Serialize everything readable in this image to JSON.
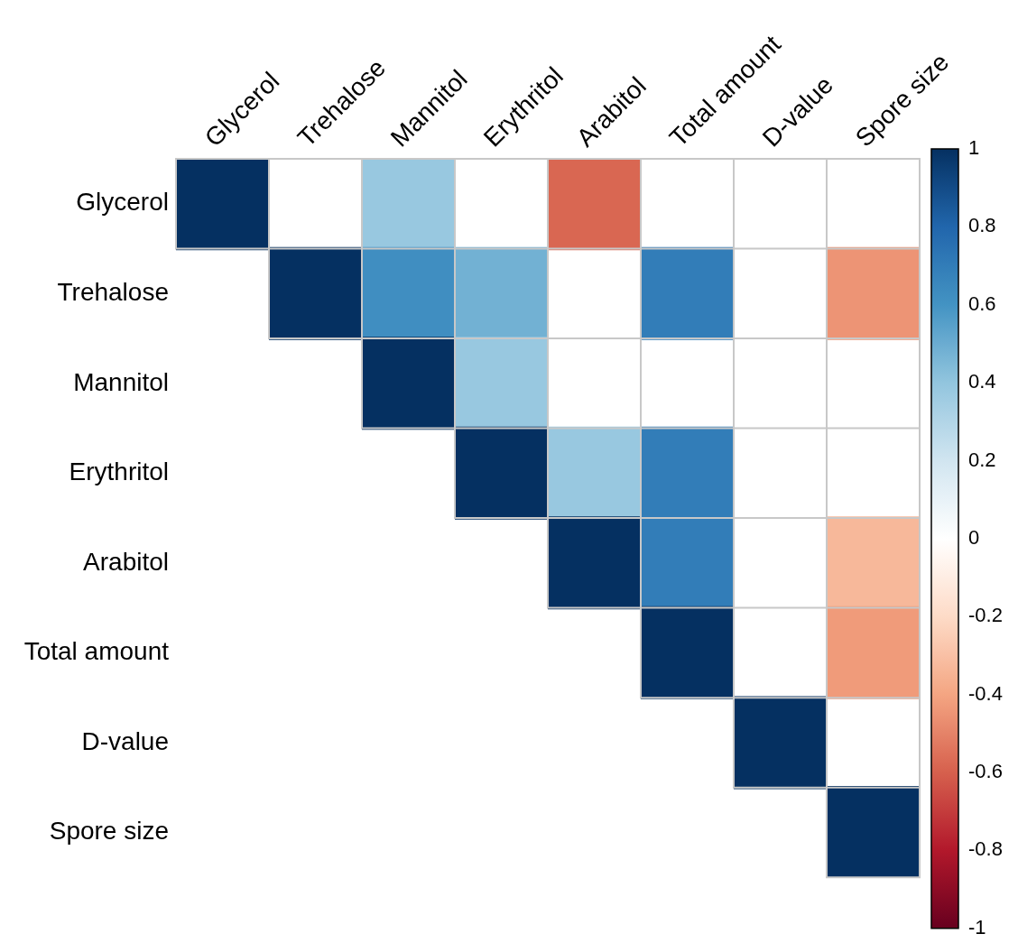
{
  "chart_data": {
    "type": "heatmap",
    "categories": [
      "Glycerol",
      "Trehalose",
      "Mannitol",
      "Erythritol",
      "Arabitol",
      "Total amount",
      "D-value",
      "Spore size"
    ],
    "y_categories": [
      "Glycerol",
      "Trehalose",
      "Mannitol",
      "Erythritol",
      "Arabitol",
      "Total amount",
      "D-value",
      "Spore size"
    ],
    "cells": [
      [
        1,
        null,
        0.38,
        null,
        -0.58,
        null,
        null,
        null
      ],
      [
        null,
        1,
        0.62,
        0.48,
        null,
        0.7,
        null,
        -0.45
      ],
      [
        null,
        null,
        1,
        0.38,
        null,
        null,
        null,
        null
      ],
      [
        null,
        null,
        null,
        1,
        0.38,
        0.7,
        null,
        null
      ],
      [
        null,
        null,
        null,
        null,
        1,
        0.7,
        null,
        -0.33
      ],
      [
        null,
        null,
        null,
        null,
        null,
        1,
        null,
        -0.43
      ],
      [
        null,
        null,
        null,
        null,
        null,
        null,
        1,
        null
      ],
      [
        null,
        null,
        null,
        null,
        null,
        null,
        null,
        1
      ]
    ],
    "clim": [
      -1,
      1
    ],
    "cticks": [
      -1,
      -0.8,
      -0.6,
      -0.4,
      -0.2,
      0,
      0.2,
      0.4,
      0.6,
      0.8,
      1
    ],
    "legend": false
  }
}
